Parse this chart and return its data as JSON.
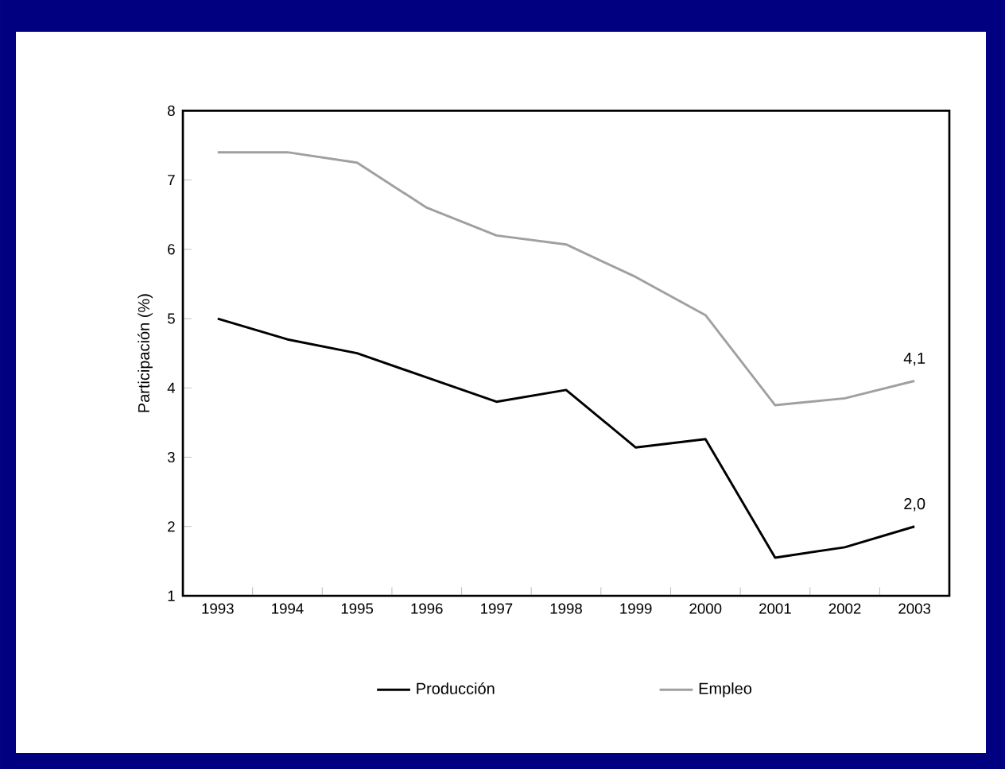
{
  "chart_data": {
    "type": "line",
    "categories": [
      "1993",
      "1994",
      "1995",
      "1996",
      "1997",
      "1998",
      "1999",
      "2000",
      "2001",
      "2002",
      "2003"
    ],
    "series": [
      {
        "name": "Producción",
        "color": "#000000",
        "values": [
          5.0,
          4.7,
          4.5,
          4.15,
          3.8,
          3.97,
          3.14,
          3.26,
          1.55,
          1.7,
          2.0
        ]
      },
      {
        "name": "Empleo",
        "color": "#a0a0a0",
        "values": [
          7.4,
          7.4,
          7.25,
          6.6,
          6.2,
          6.07,
          5.6,
          5.05,
          3.75,
          3.85,
          4.1
        ]
      }
    ],
    "ylabel": "Participación (%)",
    "ylim": [
      1,
      8
    ],
    "yticks": [
      1,
      2,
      3,
      4,
      5,
      6,
      7,
      8
    ],
    "annotations": [
      {
        "text": "4,1",
        "x": "2003",
        "y": 4.1
      },
      {
        "text": "2,0",
        "x": "2003",
        "y": 2.0
      }
    ],
    "legend": "bottom",
    "grid": false,
    "marker": "none",
    "line_style": "solid"
  }
}
